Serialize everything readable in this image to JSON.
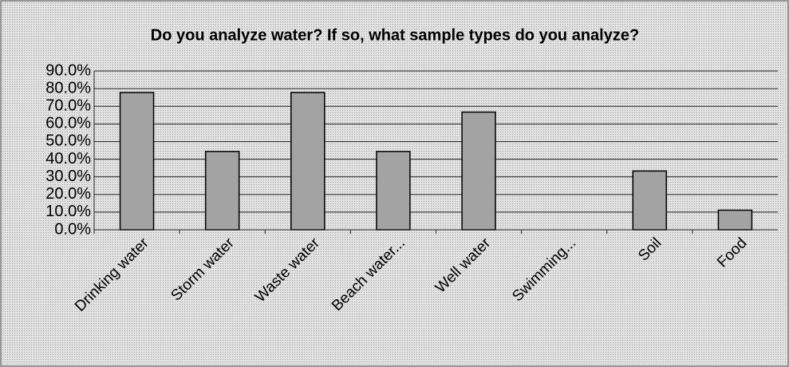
{
  "chart_data": {
    "type": "bar",
    "title": "Do you analyze water? If so, what sample types do you analyze?",
    "categories": [
      "Drinking water",
      "Storm water",
      "Waste water",
      "Beach water...",
      "Well water",
      "Swimming...",
      "Soil",
      "Food"
    ],
    "values": [
      77.8,
      44.4,
      77.8,
      44.4,
      66.7,
      0,
      33.3,
      11.1
    ],
    "color": "#a3a3a3",
    "ylim": [
      0,
      90
    ],
    "yticks": [
      {
        "value": 0,
        "label": "0.0%"
      },
      {
        "value": 10,
        "label": "10.0%"
      },
      {
        "value": 20,
        "label": "20.0%"
      },
      {
        "value": 30,
        "label": "30.0%"
      },
      {
        "value": 40,
        "label": "40.0%"
      },
      {
        "value": 50,
        "label": "50.0%"
      },
      {
        "value": 60,
        "label": "60.0%"
      },
      {
        "value": 70,
        "label": "70.0%"
      },
      {
        "value": 80,
        "label": "80.0%"
      },
      {
        "value": 90,
        "label": "90.0%"
      }
    ],
    "grid": true
  }
}
